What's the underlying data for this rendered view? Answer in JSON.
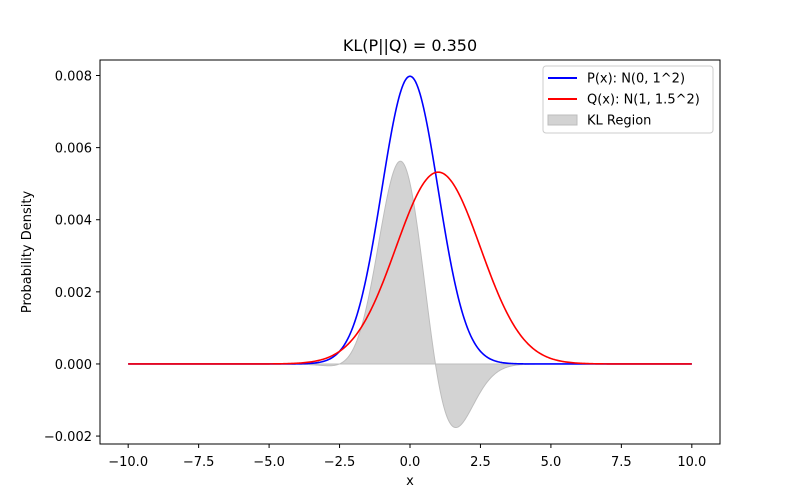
{
  "chart_data": {
    "type": "line",
    "title": "KL(P||Q) = 0.350",
    "xlabel": "x",
    "ylabel": "Probability Density",
    "xlim": [
      -11.0,
      11.0
    ],
    "ylim": [
      -0.00222,
      0.00843
    ],
    "xticks": [
      -10.0,
      -7.5,
      -5.0,
      -2.5,
      0.0,
      2.5,
      5.0,
      7.5,
      10.0
    ],
    "xtick_labels": [
      "−10.0",
      "−7.5",
      "−5.0",
      "−2.5",
      "0.0",
      "2.5",
      "5.0",
      "7.5",
      "10.0"
    ],
    "yticks": [
      -0.002,
      0.0,
      0.002,
      0.004,
      0.006,
      0.008
    ],
    "ytick_labels": [
      "−0.002",
      "0.000",
      "0.002",
      "0.004",
      "0.006",
      "0.008"
    ],
    "grid": false,
    "legend_position": "top-right",
    "x_range": [
      -10,
      10
    ],
    "series": [
      {
        "name": "P(x): N(0, 1^2)",
        "kind": "line",
        "color": "#0000ff",
        "mean": 0,
        "std": 1.0,
        "peak": 0.00798
      },
      {
        "name": "Q(x): N(1, 1.5^2)",
        "kind": "line",
        "color": "#ff0000",
        "mean": 1,
        "std": 1.5,
        "peak": 0.00532
      },
      {
        "name": "KL Region",
        "kind": "fill",
        "color": "#d3d3d3",
        "formula": "P(x) * log(P(x)/Q(x))"
      }
    ]
  }
}
